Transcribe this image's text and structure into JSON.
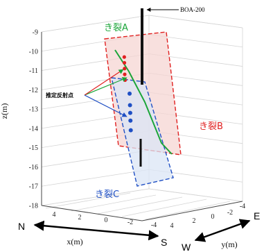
{
  "chart_data": {
    "type": "scatter",
    "title": "",
    "zlabel": "z(m)",
    "xlabel": "x(m)",
    "ylabel": "y(m)",
    "zlim": [
      -18,
      -9
    ],
    "z_ticks": [
      "-9",
      "-10",
      "-11",
      "-12",
      "-13",
      "-14",
      "-15",
      "-16",
      "-17",
      "-18"
    ],
    "x_ticks": [
      "4",
      "2",
      "0",
      "-2",
      "-4"
    ],
    "y_ticks": [
      "4",
      "2",
      "0",
      "-2",
      "-4"
    ],
    "grid": true,
    "borehole_label": "BOA-200",
    "annotation_label": "推定反射点",
    "crack_a_label": "き裂A",
    "crack_b_label": "き裂B",
    "crack_c_label": "き裂C",
    "colors": {
      "crack_a": "#1aa538",
      "crack_b": "#e02020",
      "crack_c": "#1f4fc4",
      "plane_b_fill": "#f6d5d3",
      "plane_c_fill": "#dbe5f6"
    },
    "series": [
      {
        "name": "き裂A",
        "values": [
          [
            0,
            -10
          ],
          [
            0.2,
            -11
          ],
          [
            0.5,
            -12
          ],
          [
            0.8,
            -13
          ],
          [
            1.1,
            -14
          ],
          [
            1.4,
            -15
          ]
        ]
      },
      {
        "name": "き裂B",
        "values": [
          [
            -1,
            -10.3
          ],
          [
            -1.05,
            -10.6
          ],
          [
            -1.1,
            -10.9
          ],
          [
            -1.15,
            -11.2
          ],
          [
            -1.1,
            -11.5
          ]
        ]
      },
      {
        "name": "き裂C",
        "values": [
          [
            -1.2,
            -12.2
          ],
          [
            -1.25,
            -12.8
          ],
          [
            -1.3,
            -13.2
          ],
          [
            -1.35,
            -13.6
          ],
          [
            -1.4,
            -14.1
          ]
        ]
      }
    ]
  },
  "direction": {
    "n": "N",
    "s": "S",
    "w": "W",
    "e": "E"
  }
}
